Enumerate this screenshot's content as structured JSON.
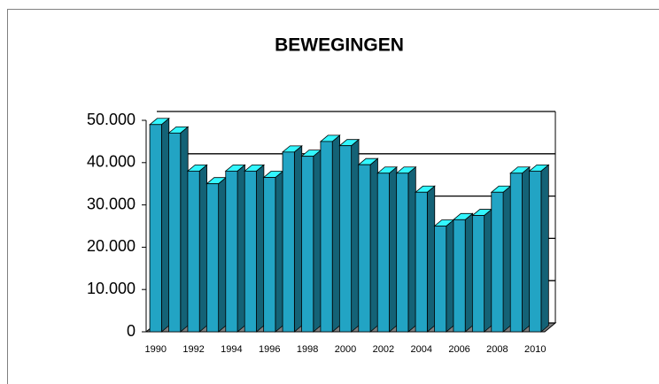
{
  "chart_data": {
    "type": "bar3d",
    "title": "BEWEGINGEN",
    "categories": [
      "1990",
      null,
      "1992",
      null,
      "1994",
      null,
      "1996",
      null,
      "1998",
      null,
      "2000",
      null,
      "2002",
      null,
      "2004",
      null,
      "2006",
      null,
      "2008",
      null,
      "2010"
    ],
    "values": [
      49000,
      47000,
      38000,
      35000,
      38000,
      38000,
      36500,
      42500,
      41500,
      45000,
      44000,
      39500,
      37500,
      37500,
      33000,
      25000,
      26500,
      27500,
      33000,
      37500,
      38000
    ],
    "color": "#22a4c4",
    "ylim": [
      0,
      50000
    ],
    "yticks": [
      0,
      {
        "value": 10000,
        "label": "10.000"
      },
      {
        "value": 20000,
        "label": "20.000"
      },
      {
        "value": 30000,
        "label": "30.000"
      },
      {
        "value": 40000,
        "label": "40.000"
      },
      {
        "value": 50000,
        "label": "50.000"
      }
    ],
    "grid": true
  }
}
